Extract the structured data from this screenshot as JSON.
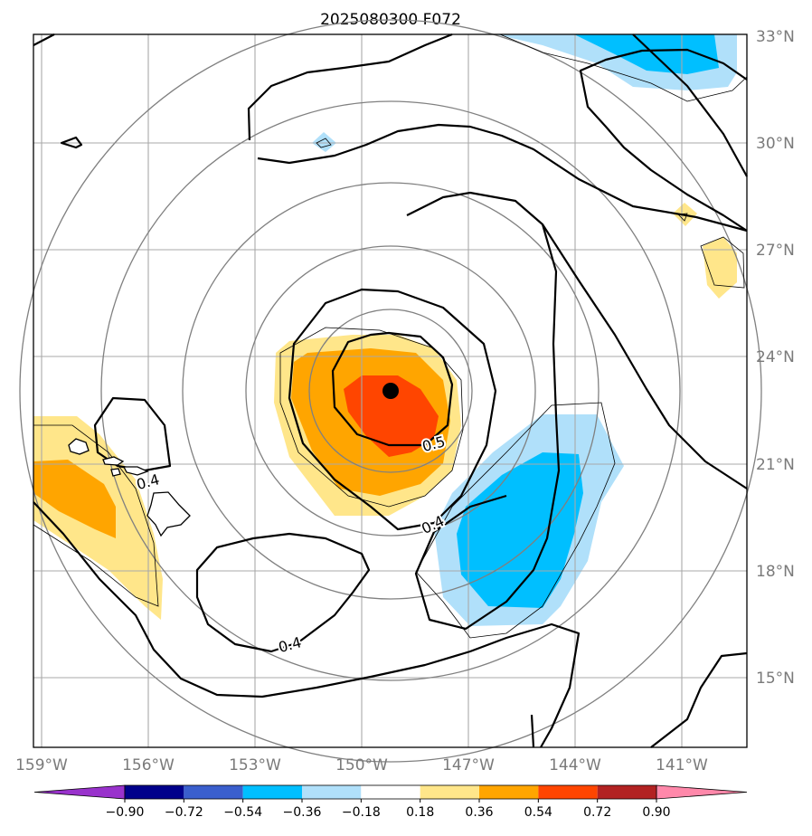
{
  "chart_data": {
    "type": "contour-map",
    "title": "2025080300 F072",
    "x_ticks": [
      "159°W",
      "156°W",
      "153°W",
      "150°W",
      "147°W",
      "144°W",
      "141°W"
    ],
    "y_ticks": [
      "33°N",
      "30°N",
      "27°N",
      "24°N",
      "21°N",
      "18°N",
      "15°N"
    ],
    "lon_range": [
      -159.2,
      -139.2
    ],
    "lat_range": [
      13.0,
      33.0
    ],
    "grid": true,
    "storm_center": {
      "lon": -149.25,
      "lat": 23.0
    },
    "colorbar": {
      "orientation": "horizontal",
      "extend": "both",
      "levels": [
        "−0.90",
        "−0.72",
        "−0.54",
        "−0.36",
        "−0.18",
        "0.18",
        "0.36",
        "0.54",
        "0.72",
        "0.90"
      ],
      "colors": [
        "#9932cc",
        "#00008b",
        "#3a5fcd",
        "#00bfff",
        "#b0e0fa",
        "#ffffff",
        "#ffe68a",
        "#ffa500",
        "#ff4500",
        "#b22222",
        "#ff88aa"
      ]
    },
    "contour_labels": [
      {
        "text": "0.5",
        "lon": -148.1,
        "lat": 21.5
      },
      {
        "text": "0.4",
        "lon": -148.3,
        "lat": 19.1
      },
      {
        "text": "0.4",
        "lon": -156.0,
        "lat": 20.7
      },
      {
        "text": "0.4",
        "lon": -151.9,
        "lat": 16.0
      }
    ]
  }
}
